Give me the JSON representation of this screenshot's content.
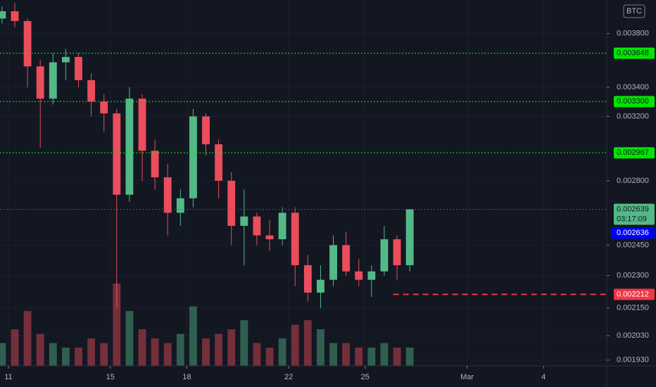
{
  "chart_data": {
    "type": "candlestick",
    "currency": "BTC",
    "x": [
      10.75,
      11.25,
      11.75,
      12.25,
      12.75,
      13.25,
      13.75,
      14.25,
      14.75,
      15.25,
      15.75,
      16.25,
      16.75,
      17.25,
      17.75,
      18.25,
      18.75,
      19.25,
      19.75,
      20.25,
      20.75,
      21.25,
      21.75,
      22.25,
      22.75,
      23.25,
      23.75,
      24.25,
      24.75,
      25.25,
      25.75,
      26.25,
      26.75
    ],
    "open": [
      0.00392,
      0.00398,
      0.0039,
      0.00355,
      0.00332,
      0.00358,
      0.00362,
      0.00345,
      0.0033,
      0.00322,
      0.00272,
      0.00332,
      0.00298,
      0.00282,
      0.00262,
      0.0027,
      0.0032,
      0.00302,
      0.0028,
      0.00255,
      0.0026,
      0.0025,
      0.00248,
      0.00262,
      0.00235,
      0.00222,
      0.00228,
      0.00245,
      0.00232,
      0.00228,
      0.00232,
      0.00248,
      0.00235
    ],
    "high": [
      0.00402,
      0.00405,
      0.00392,
      0.0036,
      0.00365,
      0.00368,
      0.00365,
      0.0035,
      0.00335,
      0.00325,
      0.0034,
      0.00335,
      0.00305,
      0.0029,
      0.00275,
      0.00325,
      0.00322,
      0.00305,
      0.00285,
      0.00275,
      0.00262,
      0.00258,
      0.00265,
      0.00265,
      0.0024,
      0.00235,
      0.0025,
      0.00252,
      0.00238,
      0.00235,
      0.00255,
      0.0025,
      0.00264
    ],
    "low": [
      0.00388,
      0.00385,
      0.0034,
      0.003,
      0.00328,
      0.00345,
      0.0034,
      0.0032,
      0.0031,
      0.00215,
      0.00268,
      0.0028,
      0.00275,
      0.0025,
      0.00255,
      0.00265,
      0.00295,
      0.0027,
      0.00245,
      0.00235,
      0.00245,
      0.00242,
      0.00245,
      0.00225,
      0.00218,
      0.00215,
      0.00225,
      0.0023,
      0.00225,
      0.0022,
      0.0023,
      0.00228,
      0.00232
    ],
    "close": [
      0.00398,
      0.0039,
      0.00355,
      0.00332,
      0.00358,
      0.00362,
      0.00345,
      0.0033,
      0.00322,
      0.00272,
      0.00332,
      0.00298,
      0.00282,
      0.00262,
      0.0027,
      0.0032,
      0.00302,
      0.0028,
      0.00255,
      0.0026,
      0.0025,
      0.00248,
      0.00262,
      0.00235,
      0.00222,
      0.00228,
      0.00245,
      0.00232,
      0.00228,
      0.00232,
      0.00248,
      0.00235,
      0.002639
    ],
    "volume": [
      25,
      40,
      60,
      35,
      25,
      20,
      20,
      30,
      25,
      90,
      60,
      40,
      30,
      25,
      35,
      65,
      30,
      35,
      40,
      50,
      25,
      20,
      30,
      45,
      50,
      40,
      25,
      25,
      20,
      20,
      25,
      20,
      20
    ],
    "vlim": [
      0,
      100
    ],
    "xlim": [
      10.67,
      34.48
    ],
    "xticks": [
      11,
      15,
      18,
      22,
      25,
      {
        "value": 29,
        "label": "Mar"
      },
      {
        "value": 32,
        "label": "4"
      }
    ],
    "ylim": [
      0.001907,
      0.004074
    ],
    "log_scale": true,
    "yticks": [
      {
        "value": 0.0038,
        "label": "0.003800"
      },
      {
        "value": 0.0034,
        "label": "0.003400"
      },
      {
        "value": 0.0032,
        "label": "0.003200"
      },
      {
        "value": 0.0028,
        "label": "0.002800"
      },
      {
        "value": 0.00245,
        "label": "0.002450"
      },
      {
        "value": 0.0023,
        "label": "0.002300"
      },
      {
        "value": 0.00215,
        "label": "0.002150"
      },
      {
        "value": 0.00203,
        "label": "0.002030"
      },
      {
        "value": 0.00193,
        "label": "0.001930"
      }
    ],
    "up_color": "#53b987",
    "down_color": "#eb4d5c",
    "levels": [
      {
        "value": 0.003648,
        "label": "0.003648",
        "color": "#00e600",
        "style": "dotted"
      },
      {
        "value": 0.0033,
        "label": "0.003300",
        "color": "#00e600",
        "style": "dotted"
      },
      {
        "value": 0.002967,
        "label": "0.002967",
        "color": "#00e600",
        "style": "dotted"
      },
      {
        "value": 0.002212,
        "label": "0.002212",
        "color": "#f23645",
        "style": "dashed",
        "x_start": 26.1
      }
    ],
    "last_price": {
      "value": 0.002639,
      "label": "0.002639",
      "countdown": "03:17:09",
      "color": "#2962ff"
    },
    "bid_price": {
      "value": 0.002636,
      "label": "0.002636",
      "color": "#0000ff"
    }
  }
}
